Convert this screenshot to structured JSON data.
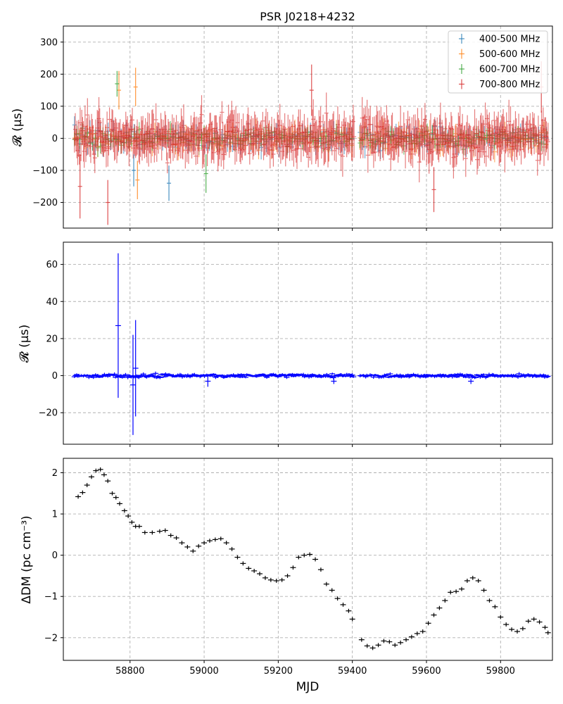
{
  "chart_data": [
    {
      "type": "scatter",
      "title": "PSR J0218+4232",
      "xlabel": "",
      "ylabel": "𝓡 (μs)",
      "xlim": [
        58620,
        59940
      ],
      "ylim": [
        -280,
        350
      ],
      "xticks": [
        58600,
        58800,
        59000,
        59200,
        59400,
        59600,
        59800
      ],
      "yticks": [
        -200,
        -100,
        0,
        100,
        200,
        300
      ],
      "grid": true,
      "legend": "top-right",
      "data_coverage": {
        "gap": [
          59405,
          59420
        ],
        "x_start": 58650,
        "x_end": 59930
      },
      "series": [
        {
          "name": "400-500 MHz",
          "color": "#1f77b4",
          "approx_spread": 25,
          "outliers": [
            {
              "x": 58810,
              "y": -100,
              "err": 50
            },
            {
              "x": 58905,
              "y": -140,
              "err": 55
            }
          ]
        },
        {
          "name": "500-600 MHz",
          "color": "#ff7f0e",
          "approx_spread": 25,
          "outliers": [
            {
              "x": 58770,
              "y": 150,
              "err": 60
            },
            {
              "x": 58815,
              "y": 160,
              "err": 60
            },
            {
              "x": 58820,
              "y": -130,
              "err": 60
            }
          ]
        },
        {
          "name": "600-700 MHz",
          "color": "#2ca02c",
          "approx_spread": 20,
          "outliers": [
            {
              "x": 58765,
              "y": 170,
              "err": 40
            },
            {
              "x": 59005,
              "y": -110,
              "err": 60
            }
          ]
        },
        {
          "name": "700-800 MHz",
          "color": "#d62728",
          "approx_spread": 45,
          "outliers": [
            {
              "x": 58665,
              "y": -150,
              "err": 100
            },
            {
              "x": 58740,
              "y": -200,
              "err": 70
            },
            {
              "x": 59290,
              "y": 150,
              "err": 80
            },
            {
              "x": 59620,
              "y": -160,
              "err": 70
            },
            {
              "x": 59910,
              "y": 160,
              "err": 80
            }
          ]
        }
      ]
    },
    {
      "type": "scatter",
      "title": "",
      "xlabel": "",
      "ylabel": "𝓡 (μs)",
      "xlim": [
        58620,
        59940
      ],
      "ylim": [
        -37,
        72
      ],
      "xticks": [
        58600,
        58800,
        59000,
        59200,
        59400,
        59600,
        59800
      ],
      "yticks": [
        -20,
        0,
        20,
        40,
        60
      ],
      "grid": true,
      "color": "#0000ff",
      "approx_spread": 1.0,
      "highlighted_points": [
        {
          "x": 58768,
          "y": 27,
          "err": 39
        },
        {
          "x": 58808,
          "y": -5,
          "err": 27
        },
        {
          "x": 58815,
          "y": 4,
          "err": 26
        },
        {
          "x": 59010,
          "y": -3,
          "err": 3
        },
        {
          "x": 59350,
          "y": -3,
          "err": 1.5
        },
        {
          "x": 59720,
          "y": -3,
          "err": 1.5
        }
      ]
    },
    {
      "type": "scatter",
      "title": "",
      "xlabel": "MJD",
      "ylabel": "ΔDM (pc cm⁻³)",
      "xlim": [
        58620,
        59940
      ],
      "ylim": [
        -2.55,
        2.35
      ],
      "xticks": [
        58600,
        58800,
        59000,
        59200,
        59400,
        59600,
        59800
      ],
      "yticks": [
        -2,
        -1,
        0,
        1,
        2
      ],
      "grid": true,
      "color": "#000000",
      "x": [
        58660,
        58672,
        58684,
        58696,
        58708,
        58720,
        58730,
        58740,
        58752,
        58762,
        58772,
        58785,
        58795,
        58805,
        58815,
        58825,
        58840,
        58860,
        58880,
        58895,
        58910,
        58925,
        58940,
        58955,
        58970,
        58985,
        59000,
        59015,
        59030,
        59045,
        59060,
        59075,
        59090,
        59105,
        59120,
        59135,
        59150,
        59165,
        59180,
        59195,
        59210,
        59225,
        59240,
        59255,
        59270,
        59285,
        59300,
        59315,
        59330,
        59345,
        59360,
        59375,
        59390,
        59400,
        59425,
        59440,
        59455,
        59470,
        59485,
        59500,
        59515,
        59530,
        59545,
        59560,
        59575,
        59590,
        59605,
        59620,
        59635,
        59650,
        59665,
        59680,
        59695,
        59710,
        59725,
        59740,
        59755,
        59770,
        59785,
        59800,
        59815,
        59830,
        59845,
        59860,
        59875,
        59890,
        59905,
        59920,
        59928
      ],
      "y": [
        1.42,
        1.52,
        1.7,
        1.9,
        2.05,
        2.08,
        1.95,
        1.8,
        1.5,
        1.4,
        1.25,
        1.08,
        0.95,
        0.8,
        0.7,
        0.7,
        0.55,
        0.55,
        0.58,
        0.6,
        0.48,
        0.42,
        0.3,
        0.2,
        0.1,
        0.22,
        0.3,
        0.35,
        0.38,
        0.4,
        0.3,
        0.15,
        -0.05,
        -0.2,
        -0.32,
        -0.38,
        -0.45,
        -0.55,
        -0.6,
        -0.62,
        -0.6,
        -0.5,
        -0.3,
        -0.05,
        0.0,
        0.02,
        -0.1,
        -0.35,
        -0.7,
        -0.85,
        -1.05,
        -1.2,
        -1.35,
        -1.55,
        -2.05,
        -2.2,
        -2.25,
        -2.18,
        -2.08,
        -2.1,
        -2.18,
        -2.12,
        -2.05,
        -1.98,
        -1.9,
        -1.85,
        -1.65,
        -1.45,
        -1.28,
        -1.1,
        -0.9,
        -0.88,
        -0.82,
        -0.62,
        -0.55,
        -0.62,
        -0.85,
        -1.1,
        -1.25,
        -1.5,
        -1.68,
        -1.8,
        -1.85,
        -1.78,
        -1.6,
        -1.55,
        -1.62,
        -1.75,
        -1.88
      ]
    }
  ]
}
